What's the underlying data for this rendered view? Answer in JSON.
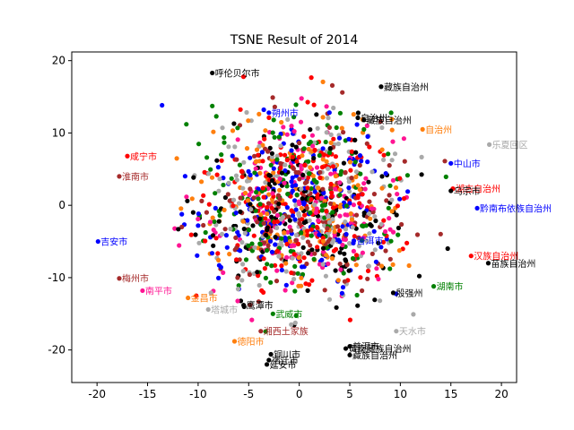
{
  "chart_data": {
    "type": "scatter",
    "title": "TSNE Result of 2014",
    "xlabel": "",
    "ylabel": "",
    "xlim": [
      -22.5,
      21.5
    ],
    "ylim": [
      -24.5,
      21.2
    ],
    "xticks": [
      "-20",
      "-15",
      "-10",
      "-5",
      "0",
      "5",
      "10",
      "15",
      "20"
    ],
    "yticks": [
      "-20",
      "-10",
      "0",
      "10",
      "20"
    ],
    "grid": false,
    "legend": "none",
    "palette": [
      "#ff0000",
      "#ff7f0e",
      "#008000",
      "#0000ff",
      "#000000",
      "#a9a9a9",
      "#a52a2a",
      "#ff1493"
    ],
    "point_count": 1300,
    "labeled_points": [
      {
        "x": -8.6,
        "y": 18.3,
        "label": "呼伦贝尔市",
        "color": "#000000"
      },
      {
        "x": -19.9,
        "y": -5.0,
        "label": "吉安市",
        "color": "#0000ff"
      },
      {
        "x": 15.0,
        "y": 5.8,
        "label": "中山市",
        "color": "#0000ff"
      },
      {
        "x": 15.2,
        "y": 2.3,
        "label": "湖古自治州",
        "color": "#ff0000"
      },
      {
        "x": 15.0,
        "y": 2.0,
        "label": "乌宗市",
        "color": "#000000"
      },
      {
        "x": 18.8,
        "y": 8.4,
        "label": "乐夏回区",
        "color": "#a9a9a9"
      },
      {
        "x": 17.6,
        "y": -0.4,
        "label": "黔南布依族自治州",
        "color": "#0000ff"
      },
      {
        "x": 18.7,
        "y": -8.0,
        "label": "苗族自治州",
        "color": "#000000"
      },
      {
        "x": 17.0,
        "y": -7.0,
        "label": "汉族自治州",
        "color": "#ff0000"
      },
      {
        "x": 13.3,
        "y": -11.2,
        "label": "湖南市",
        "color": "#008000"
      },
      {
        "x": 9.3,
        "y": -12.1,
        "label": "殷强州",
        "color": "#000000"
      },
      {
        "x": -2.8,
        "y": -20.6,
        "label": "铜川市",
        "color": "#000000"
      },
      {
        "x": -3.0,
        "y": -21.4,
        "label": "宿迁市",
        "color": "#000000"
      },
      {
        "x": -3.2,
        "y": -22.0,
        "label": "延安市",
        "color": "#000000"
      },
      {
        "x": 5.0,
        "y": -20.7,
        "label": "藏族自治州",
        "color": "#000000"
      },
      {
        "x": 4.6,
        "y": -19.8,
        "label": "黄南藏族自治州",
        "color": "#000000"
      },
      {
        "x": 5.0,
        "y": -19.5,
        "label": "普洱市",
        "color": "#000000"
      },
      {
        "x": -11.0,
        "y": -12.8,
        "label": "金昌市",
        "color": "#ff7f0e"
      },
      {
        "x": -9.0,
        "y": -14.4,
        "label": "塔城市",
        "color": "#a9a9a9"
      },
      {
        "x": -6.4,
        "y": -18.8,
        "label": "德阳市",
        "color": "#ff7f0e"
      },
      {
        "x": -2.6,
        "y": -15.0,
        "label": "武威市",
        "color": "#008000"
      },
      {
        "x": -3.8,
        "y": -17.4,
        "label": "湘西土家族",
        "color": "#a52a2a"
      },
      {
        "x": -5.5,
        "y": -13.8,
        "label": "鹰潭市",
        "color": "#000000"
      },
      {
        "x": 9.6,
        "y": -17.4,
        "label": "天水市",
        "color": "#a9a9a9"
      },
      {
        "x": -17.0,
        "y": 6.8,
        "label": "咸宁市",
        "color": "#ff0000"
      },
      {
        "x": -17.8,
        "y": 4.0,
        "label": "淮南市",
        "color": "#a52a2a"
      },
      {
        "x": 5.8,
        "y": 12.1,
        "label": "自治州",
        "color": "#000000"
      },
      {
        "x": 6.4,
        "y": 11.8,
        "label": "藏族自治州",
        "color": "#000000"
      },
      {
        "x": 12.2,
        "y": 10.5,
        "label": "自治州",
        "color": "#ff7f0e"
      },
      {
        "x": 8.1,
        "y": 16.4,
        "label": "藏族自治州",
        "color": "#000000"
      },
      {
        "x": -3.0,
        "y": 12.8,
        "label": "朔州市",
        "color": "#0000ff"
      },
      {
        "x": 5.4,
        "y": -4.9,
        "label": "普洱市",
        "color": "#0000ff"
      },
      {
        "x": -17.8,
        "y": -10.1,
        "label": "梅州市",
        "color": "#a52a2a"
      },
      {
        "x": -15.5,
        "y": -11.8,
        "label": "南平市",
        "color": "#ff1493"
      }
    ]
  }
}
